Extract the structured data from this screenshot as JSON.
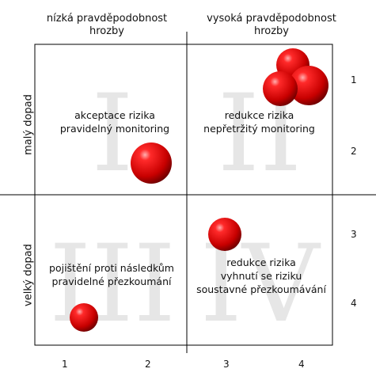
{
  "columns": {
    "left_header_line1": "nízká pravděpodobnost",
    "left_header_line2": "hrozby",
    "right_header_line1": "vysoká pravděpodobnost",
    "right_header_line2": "hrozby"
  },
  "rows": {
    "top_label": "malý dopad",
    "bottom_label": "velký dopad"
  },
  "scale_bottom": [
    "1",
    "2",
    "3",
    "4"
  ],
  "scale_right": [
    "1",
    "2",
    "3",
    "4"
  ],
  "quadrants": {
    "I": {
      "roman": "I",
      "line1": "akceptace rizika",
      "line2": "pravidelný monitoring"
    },
    "II": {
      "roman": "II",
      "line1": "redukce rizika",
      "line2": "nepřetržitý monitoring"
    },
    "III": {
      "roman": "III",
      "line1": "pojištění proti následkům",
      "line2": "pravidelné přezkoumání"
    },
    "IV": {
      "roman": "IV",
      "line1": "redukce rizika",
      "line2": "vyhnutí se riziku",
      "line3": "soustavné přezkoumávání"
    }
  },
  "colors": {
    "sphere": "#d40000",
    "frame": "#000000",
    "watermark": "#e6e6e6"
  }
}
